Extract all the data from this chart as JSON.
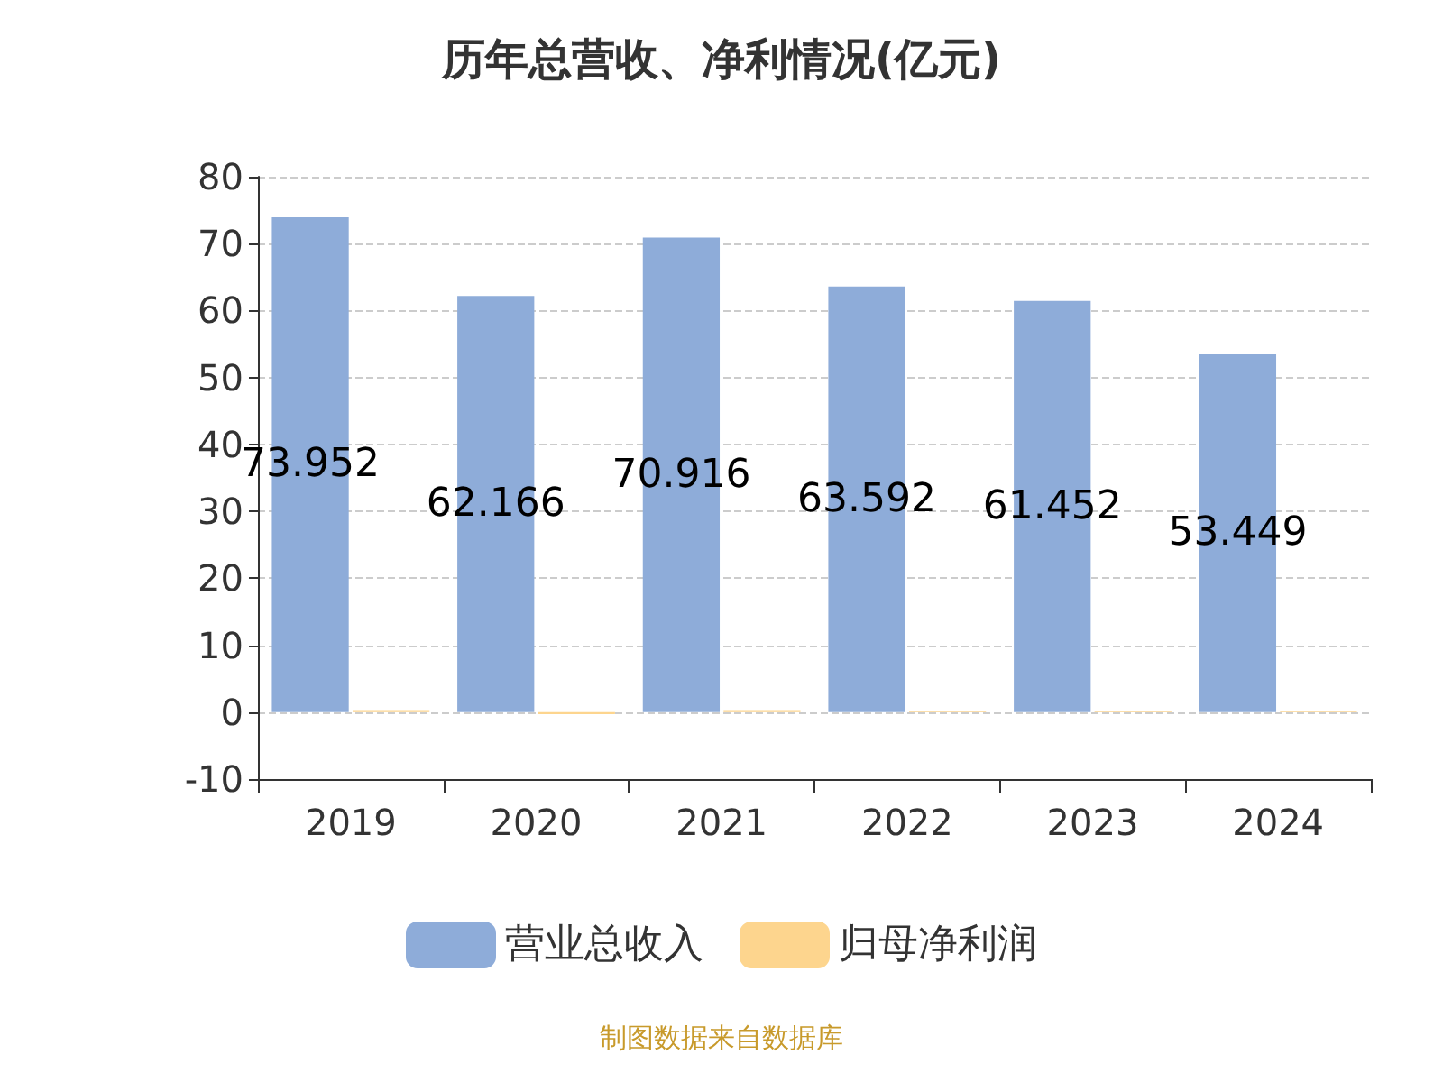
{
  "chart_data": {
    "type": "bar",
    "title": "历年总营收、净利情况(亿元)",
    "categories": [
      "2019",
      "2020",
      "2021",
      "2022",
      "2023",
      "2024"
    ],
    "series": [
      {
        "name": "营业总收入",
        "color": "#8eacd9",
        "values": [
          73.952,
          62.166,
          70.916,
          63.592,
          61.452,
          53.449
        ],
        "value_labels": [
          "73.952",
          "62.166",
          "70.916",
          "63.592",
          "61.452",
          "53.449"
        ]
      },
      {
        "name": "归母净利润",
        "color": "#fdd58e",
        "values": [
          0.3,
          -0.3,
          0.3,
          0.1,
          0.1,
          0.1
        ]
      }
    ],
    "ylim": [
      -10,
      80
    ],
    "yticks": [
      -10,
      0,
      10,
      20,
      30,
      40,
      50,
      60,
      70,
      80
    ],
    "grid": "y",
    "legend": "bottom",
    "annotations": [
      "制图数据来自数据库"
    ]
  }
}
